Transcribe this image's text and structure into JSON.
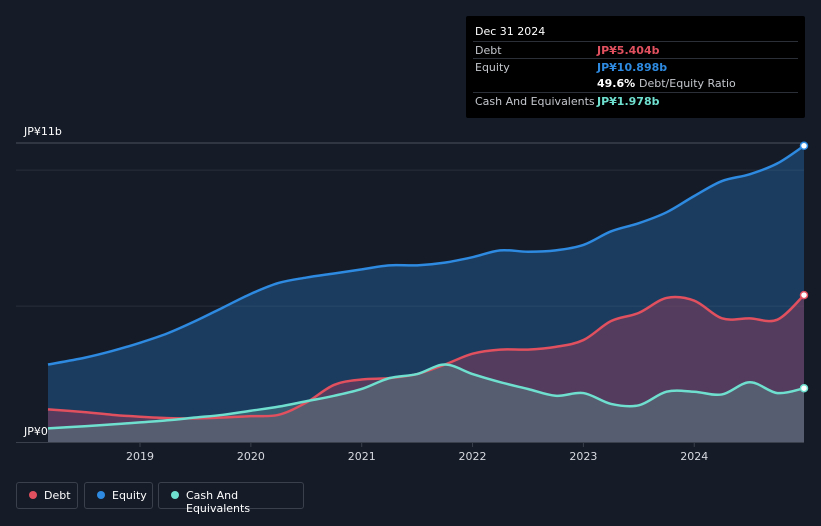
{
  "chart_data": {
    "type": "area",
    "title": "",
    "y_ticks": [
      "JP¥11b",
      "JP¥0"
    ],
    "ylim": [
      0,
      11
    ],
    "xlim": [
      2018.17,
      2024.99
    ],
    "x_ticks": [
      "2019",
      "2020",
      "2021",
      "2022",
      "2023",
      "2024"
    ],
    "series": [
      {
        "name": "Equity",
        "color": "#2d8ae0",
        "x": [
          2018.17,
          2018.5,
          2018.75,
          2019.0,
          2019.25,
          2019.5,
          2019.75,
          2020.0,
          2020.25,
          2020.5,
          2020.75,
          2021.0,
          2021.25,
          2021.5,
          2021.75,
          2022.0,
          2022.25,
          2022.5,
          2022.75,
          2023.0,
          2023.25,
          2023.5,
          2023.75,
          2024.0,
          2024.25,
          2024.5,
          2024.75,
          2024.99
        ],
        "values": [
          2.85,
          3.1,
          3.35,
          3.65,
          4.0,
          4.45,
          4.95,
          5.45,
          5.85,
          6.05,
          6.2,
          6.35,
          6.5,
          6.5,
          6.6,
          6.8,
          7.05,
          7.0,
          7.05,
          7.25,
          7.75,
          8.05,
          8.45,
          9.05,
          9.6,
          9.85,
          10.25,
          10.898
        ]
      },
      {
        "name": "Debt",
        "color": "#e0505e",
        "x": [
          2018.17,
          2018.5,
          2018.75,
          2019.0,
          2019.25,
          2019.5,
          2019.75,
          2020.0,
          2020.25,
          2020.5,
          2020.75,
          2021.0,
          2021.25,
          2021.5,
          2021.75,
          2022.0,
          2022.25,
          2022.5,
          2022.75,
          2023.0,
          2023.25,
          2023.5,
          2023.75,
          2024.0,
          2024.25,
          2024.5,
          2024.75,
          2024.99
        ],
        "values": [
          1.2,
          1.1,
          1.0,
          0.93,
          0.88,
          0.87,
          0.9,
          0.95,
          1.0,
          1.45,
          2.1,
          2.3,
          2.35,
          2.5,
          2.85,
          3.25,
          3.4,
          3.4,
          3.5,
          3.75,
          4.45,
          4.75,
          5.3,
          5.2,
          4.55,
          4.55,
          4.5,
          5.404
        ]
      },
      {
        "name": "Cash And Equivalents",
        "color": "#6fe0cf",
        "x": [
          2018.17,
          2018.5,
          2018.75,
          2019.0,
          2019.25,
          2019.5,
          2019.75,
          2020.0,
          2020.25,
          2020.5,
          2020.75,
          2021.0,
          2021.25,
          2021.5,
          2021.75,
          2022.0,
          2022.25,
          2022.5,
          2022.75,
          2023.0,
          2023.25,
          2023.5,
          2023.75,
          2024.0,
          2024.25,
          2024.5,
          2024.75,
          2024.99
        ],
        "values": [
          0.5,
          0.58,
          0.65,
          0.72,
          0.8,
          0.9,
          1.0,
          1.15,
          1.3,
          1.5,
          1.7,
          1.95,
          2.35,
          2.5,
          2.85,
          2.5,
          2.2,
          1.95,
          1.7,
          1.8,
          1.4,
          1.35,
          1.85,
          1.85,
          1.75,
          2.2,
          1.8,
          1.978
        ]
      }
    ],
    "tooltip": {
      "date": "Dec 31 2024",
      "rows": [
        {
          "label": "Debt",
          "value": "JP¥5.404b",
          "color": "#e0505e"
        },
        {
          "label": "Equity",
          "value": "JP¥10.898b",
          "color": "#2d8ae0"
        },
        {
          "label": "",
          "value": "49.6%",
          "suffix": "Debt/Equity Ratio",
          "color": "#ffffff"
        },
        {
          "label": "Cash And Equivalents",
          "value": "JP¥1.978b",
          "color": "#6fe0cf"
        }
      ]
    },
    "legend": [
      {
        "label": "Debt",
        "color": "#e0505e"
      },
      {
        "label": "Equity",
        "color": "#2d8ae0"
      },
      {
        "label": "Cash And Equivalents",
        "color": "#6fe0cf"
      }
    ]
  }
}
